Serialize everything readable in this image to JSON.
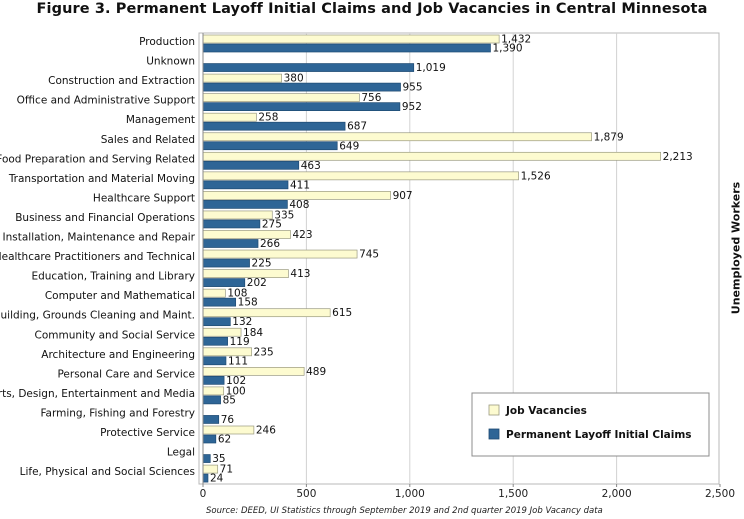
{
  "chart_data": {
    "type": "bar",
    "orientation": "horizontal",
    "title": "Figure 3. Permanent Layoff Initial Claims and Job Vacancies in Central Minnesota",
    "right_axis_label": "Unemployed Workers",
    "source": "Source: DEED, UI Statistics through September 2019 and 2nd quarter 2019 Job Vacancy data",
    "xlim": [
      0,
      2500
    ],
    "x_ticks": [
      "0",
      "500",
      "1,000",
      "1,500",
      "2,000",
      "2,500"
    ],
    "x_tick_values": [
      0,
      500,
      1000,
      1500,
      2000,
      2500
    ],
    "grid": "vertical",
    "legend_position": "bottom-right",
    "categories": [
      "Production",
      "Unknown",
      "Construction and Extraction",
      "Office and Administrative Support",
      "Management",
      "Sales and Related",
      "Food Preparation and Serving Related",
      "Transportation and Material Moving",
      "Healthcare Support",
      "Business and Financial Operations",
      "Installation, Maintenance and Repair",
      "Healthcare Practitioners and Technical",
      "Education, Training and Library",
      "Computer and Mathematical",
      "Building, Grounds Cleaning and Maint.",
      "Community and Social Service",
      "Architecture and Engineering",
      "Personal Care and Service",
      "Arts, Design, Entertainment and Media",
      "Farming, Fishing and Forestry",
      "Protective Service",
      "Legal",
      "Life, Physical and Social Sciences"
    ],
    "series": [
      {
        "name": "Job Vacancies",
        "color": "#fdfbd0",
        "stroke": "#9a9a80",
        "values": [
          1432,
          null,
          380,
          756,
          258,
          1879,
          2213,
          1526,
          907,
          335,
          423,
          745,
          413,
          108,
          615,
          184,
          235,
          489,
          100,
          null,
          246,
          null,
          71
        ],
        "labels": [
          "1,432",
          "",
          "380",
          "756",
          "258",
          "1,879",
          "2,213",
          "1,526",
          "907",
          "335",
          "423",
          "745",
          "413",
          "108",
          "615",
          "184",
          "235",
          "489",
          "100",
          "",
          "246",
          "",
          "71"
        ]
      },
      {
        "name": "Permanent Layoff Initial Claims",
        "color": "#2e6596",
        "stroke": "#1e4a72",
        "values": [
          1390,
          1019,
          955,
          952,
          687,
          649,
          463,
          411,
          408,
          275,
          266,
          225,
          202,
          158,
          132,
          119,
          111,
          102,
          85,
          76,
          62,
          35,
          24
        ],
        "labels": [
          "1,390",
          "1,019",
          "955",
          "952",
          "687",
          "649",
          "463",
          "411",
          "408",
          "275",
          "266",
          "225",
          "202",
          "158",
          "132",
          "119",
          "111",
          "102",
          "85",
          "76",
          "62",
          "35",
          "24"
        ]
      }
    ]
  }
}
